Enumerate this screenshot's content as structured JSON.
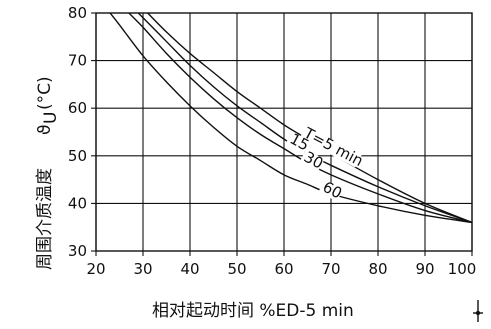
{
  "chart_data": {
    "type": "line",
    "title": "",
    "xlabel": "相对起动时间 %ED-5 min",
    "ylabel": "周围介质温度 ϑU (°C)",
    "ylabel_text": "周围介质温度",
    "ylabel_symbol": "ϑ",
    "ylabel_symbol_sub": "U",
    "ylabel_unit": "(°C)",
    "xlim": [
      20,
      100
    ],
    "ylim": [
      30,
      80
    ],
    "xticks": [
      20,
      30,
      40,
      50,
      60,
      70,
      80,
      90,
      100
    ],
    "yticks": [
      30,
      40,
      50,
      60,
      70,
      80
    ],
    "grid": true,
    "legend": "none",
    "series": [
      {
        "name": "T=5 min",
        "x": [
          31,
          35,
          40,
          45,
          50,
          55,
          60,
          65,
          70,
          80,
          90,
          100
        ],
        "y": [
          80,
          76,
          71.5,
          67.5,
          63.5,
          60,
          56.5,
          53.5,
          50.5,
          45,
          40,
          36
        ]
      },
      {
        "name": "15",
        "x": [
          29,
          30,
          35,
          40,
          45,
          50,
          55,
          60,
          65,
          70,
          80,
          90,
          100
        ],
        "y": [
          80,
          79,
          74,
          69,
          64.5,
          60.5,
          57,
          53.5,
          50.5,
          48,
          43.5,
          39.5,
          36
        ]
      },
      {
        "name": "30",
        "x": [
          27,
          30,
          35,
          40,
          45,
          50,
          55,
          60,
          65,
          70,
          80,
          90,
          100
        ],
        "y": [
          80,
          77,
          71.5,
          66.5,
          62,
          58,
          54.5,
          51.5,
          48.5,
          46,
          42,
          38.5,
          36
        ]
      },
      {
        "name": "60",
        "x": [
          23,
          25,
          30,
          35,
          40,
          45,
          50,
          55,
          60,
          65,
          70,
          80,
          90,
          100
        ],
        "y": [
          80,
          77.5,
          71,
          65.5,
          60.5,
          56,
          52,
          49,
          46,
          44,
          42,
          39.5,
          37.5,
          36
        ]
      }
    ]
  }
}
